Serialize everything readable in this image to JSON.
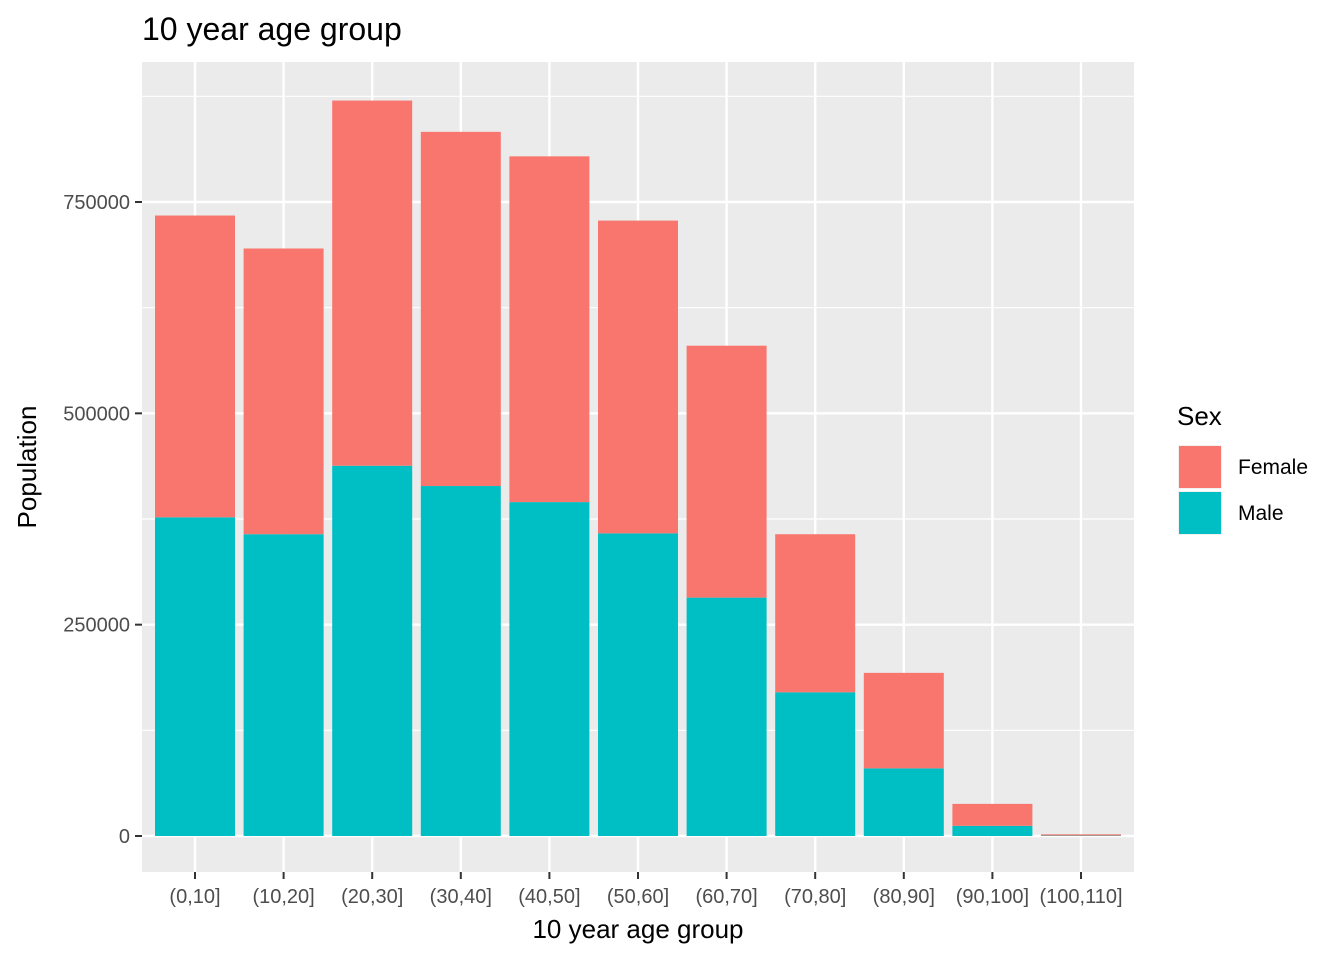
{
  "chart_data": {
    "type": "bar",
    "stacked": true,
    "title": "10 year age group",
    "xlabel": "10 year age group",
    "ylabel": "Population",
    "categories": [
      "(0,10]",
      "(10,20]",
      "(20,30]",
      "(30,40]",
      "(40,50]",
      "(50,60]",
      "(60,70]",
      "(70,80]",
      "(80,90]",
      "(90,100]",
      "(100,110]"
    ],
    "series": [
      {
        "name": "Female",
        "color": "#F8766D",
        "values": [
          357000,
          338000,
          432000,
          419000,
          409000,
          370000,
          298000,
          187000,
          113000,
          26000,
          1500
        ]
      },
      {
        "name": "Male",
        "color": "#00BFC4",
        "values": [
          377000,
          357000,
          438000,
          414000,
          395000,
          358000,
          282000,
          170000,
          80000,
          12000,
          500
        ]
      }
    ],
    "ylim": [
      0,
      900000
    ],
    "yticks": [
      0,
      250000,
      500000,
      750000
    ],
    "ytick_labels": [
      "0",
      "250000",
      "500000",
      "750000"
    ],
    "grid": true,
    "panel_background": "#EBEBEB",
    "legend": {
      "title": "Sex",
      "position": "right",
      "entries": [
        "Female",
        "Male"
      ]
    }
  }
}
